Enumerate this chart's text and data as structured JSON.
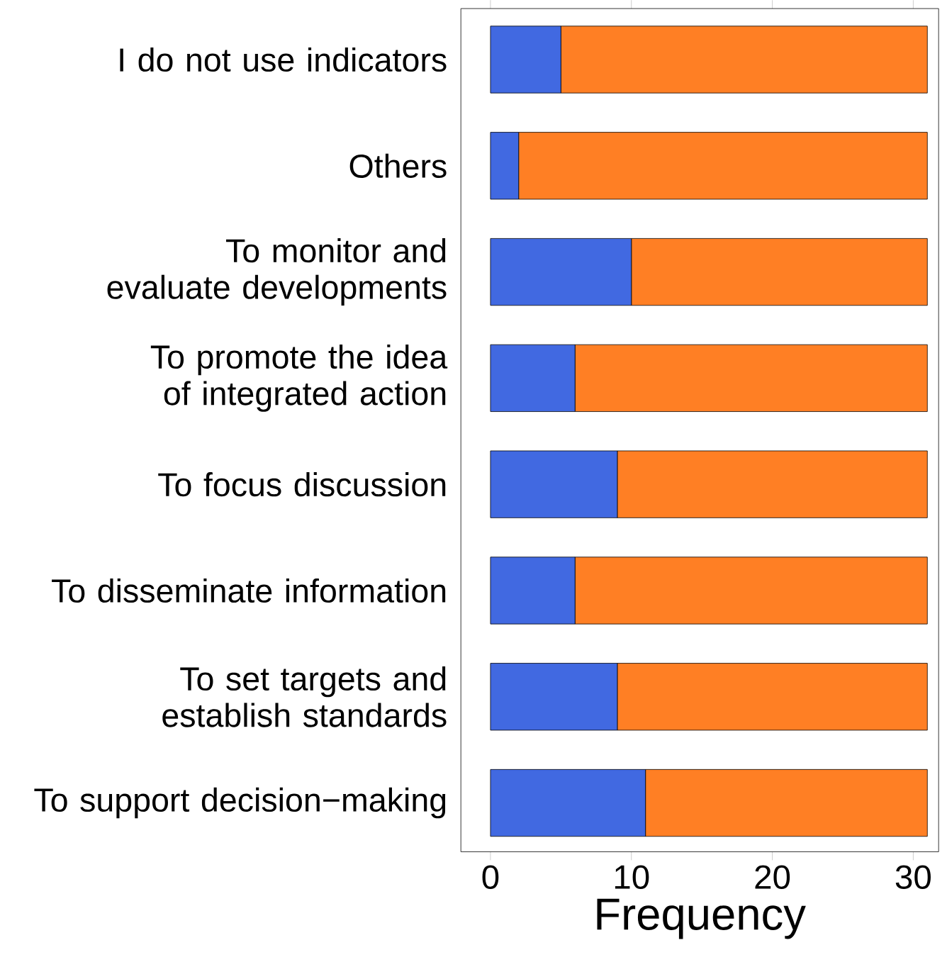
{
  "chart_data": {
    "type": "bar",
    "orientation": "horizontal",
    "stacked": true,
    "xlabel": "Frequency",
    "categories": [
      "I do not use indicators",
      "Others",
      "To monitor and evaluate developments",
      "To promote the idea of integrated action",
      "To focus discussion",
      "To disseminate information",
      "To set targets and establish standards",
      "To support decision−making"
    ],
    "series": [
      {
        "color": "#4169e1",
        "values": [
          5,
          2,
          10,
          6,
          9,
          6,
          9,
          11
        ]
      },
      {
        "color": "#ff7f24",
        "values": [
          26,
          29,
          21,
          25,
          22,
          25,
          22,
          20
        ]
      }
    ],
    "xlim": [
      -2.1,
      31.8
    ],
    "xticks": [
      0,
      10,
      20,
      30
    ],
    "grid": false
  }
}
